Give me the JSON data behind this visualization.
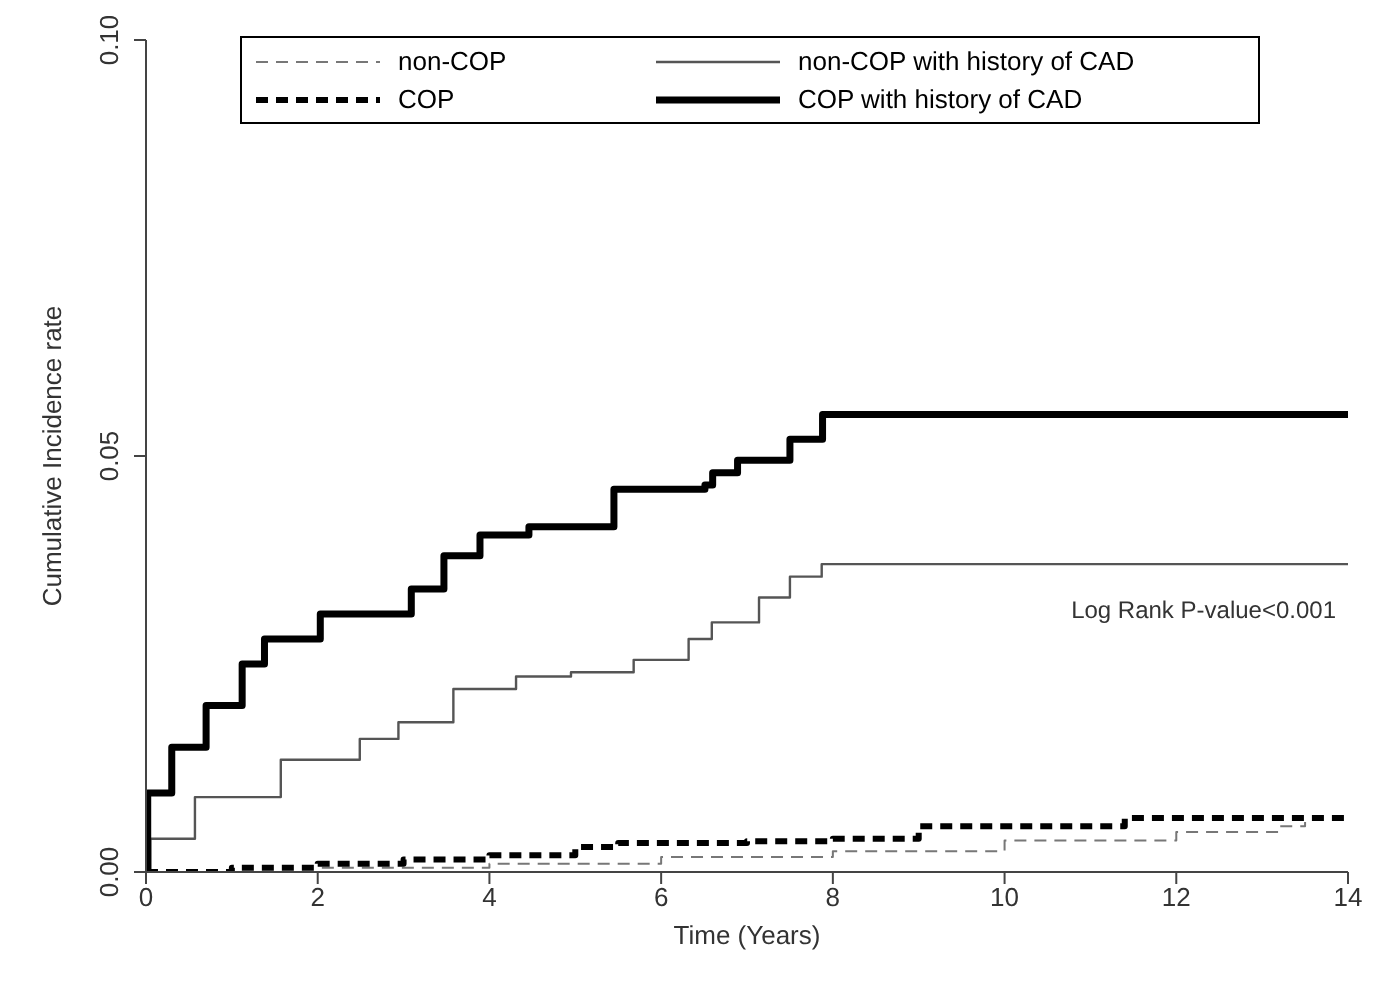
{
  "chart_data": {
    "type": "step",
    "xlabel": "Time (Years)",
    "ylabel": "Cumulative Incidence rate",
    "xlim": [
      0,
      14
    ],
    "xticks": [
      0,
      2,
      4,
      6,
      8,
      10,
      12,
      14
    ],
    "ylim": [
      0,
      0.1
    ],
    "yticks": [
      {
        "value": 0,
        "label": "0.00"
      },
      {
        "value": 0.05,
        "label": "0.05"
      },
      {
        "value": 0.1,
        "label": "0.10"
      }
    ],
    "legend": "top",
    "marker": "none",
    "annotations": [
      "Log Rank P-value<0.001"
    ],
    "series": [
      {
        "name": "non-COP",
        "color": "#777777",
        "line_style": "dashed",
        "x": [
          0,
          2,
          4,
          6,
          8,
          10,
          12,
          13.2,
          13.5
        ],
        "values": [
          0,
          0.0005,
          0.001,
          0.0018,
          0.0025,
          0.0038,
          0.0048,
          0.0055,
          0.006
        ]
      },
      {
        "name": "non-COP with history of CAD",
        "color": "#555555",
        "line_style": "solid",
        "x": [
          0,
          0.05,
          0.57,
          1.57,
          2.49,
          2.94,
          3.58,
          4.31,
          4.95,
          5.68,
          6.32,
          6.59,
          7.14,
          7.5,
          7.87,
          14
        ],
        "values": [
          0,
          0.004,
          0.009,
          0.0135,
          0.016,
          0.018,
          0.022,
          0.0235,
          0.024,
          0.0255,
          0.028,
          0.03,
          0.033,
          0.0355,
          0.037,
          0.037
        ]
      },
      {
        "name": "COP",
        "color": "#000000",
        "line_style": "dashed",
        "x": [
          0,
          1,
          2,
          3,
          4,
          5,
          5.5,
          7,
          8,
          9,
          11.3,
          11.4,
          14
        ],
        "values": [
          0,
          0.0005,
          0.001,
          0.0015,
          0.002,
          0.003,
          0.0035,
          0.0037,
          0.004,
          0.0055,
          0.0055,
          0.0065,
          0.0065
        ]
      },
      {
        "name": "COP with history of CAD",
        "color": "#000000",
        "line_style": "solid",
        "x": [
          0,
          0.02,
          0.3,
          0.7,
          1.12,
          1.38,
          2.03,
          3.09,
          3.47,
          3.89,
          4.46,
          5.45,
          6.51,
          6.6,
          6.89,
          7.5,
          7.88,
          14
        ],
        "values": [
          0,
          0.0095,
          0.015,
          0.02,
          0.025,
          0.028,
          0.031,
          0.034,
          0.038,
          0.0405,
          0.0415,
          0.046,
          0.0465,
          0.048,
          0.0495,
          0.052,
          0.055,
          0.055
        ]
      }
    ]
  }
}
